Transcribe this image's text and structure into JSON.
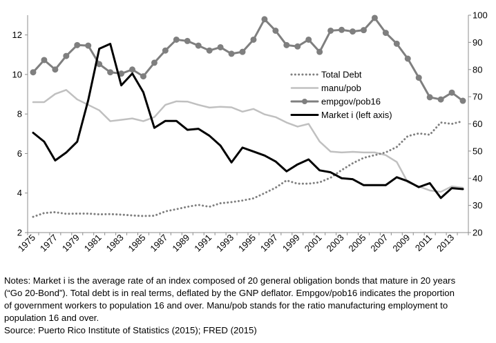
{
  "chart_data": {
    "type": "line",
    "x": [
      1975,
      1976,
      1977,
      1978,
      1979,
      1980,
      1981,
      1982,
      1983,
      1984,
      1985,
      1986,
      1987,
      1988,
      1989,
      1990,
      1991,
      1992,
      1993,
      1994,
      1995,
      1996,
      1997,
      1998,
      1999,
      2000,
      2001,
      2002,
      2003,
      2004,
      2005,
      2006,
      2007,
      2008,
      2009,
      2010,
      2011,
      2012,
      2013,
      2014
    ],
    "x_tick_labels": [
      "1975",
      "1977",
      "1979",
      "1981",
      "1983",
      "1985",
      "1987",
      "1989",
      "1991",
      "1993",
      "1995",
      "1997",
      "1999",
      "2001",
      "2003",
      "2005",
      "2007",
      "2009",
      "2011",
      "2013"
    ],
    "left_axis": {
      "range": [
        2,
        13
      ],
      "ticks": [
        "2",
        "4",
        "6",
        "8",
        "10",
        "12"
      ]
    },
    "right_axis": {
      "range": [
        20,
        100
      ],
      "ticks": [
        "20",
        "30",
        "40",
        "50",
        "60",
        "70",
        "80",
        "90",
        "100"
      ]
    },
    "series": [
      {
        "name": "Total Debt",
        "axis": "right",
        "style": "dotted",
        "color": "#7f7f7f",
        "values": [
          25.8,
          27.2,
          27.5,
          26.9,
          27.0,
          27.0,
          26.7,
          26.8,
          26.6,
          26.3,
          26.1,
          26.2,
          27.8,
          28.6,
          29.5,
          30.2,
          29.5,
          30.8,
          31.2,
          31.8,
          32.6,
          34.5,
          36.5,
          39.2,
          38.0,
          38.0,
          38.5,
          40.2,
          43.0,
          45.5,
          47.5,
          48.5,
          49.5,
          51.5,
          55.5,
          56.5,
          56.0,
          60.5,
          60.0,
          61.0
        ]
      },
      {
        "name": "manu/pob",
        "axis": "right",
        "style": "solid",
        "color": "#c0c0c0",
        "values": [
          68.0,
          68.0,
          71.0,
          72.5,
          69.0,
          67.0,
          65.0,
          61.0,
          61.5,
          62.0,
          61.0,
          62.5,
          67.0,
          68.3,
          68.2,
          67.0,
          66.0,
          66.3,
          66.1,
          64.5,
          65.5,
          63.5,
          62.5,
          60.5,
          59.0,
          60.0,
          53.5,
          49.8,
          49.5,
          49.7,
          49.5,
          49.5,
          48.5,
          46.0,
          38.5,
          37.0,
          35.5,
          35.0,
          37.0,
          36.5
        ]
      },
      {
        "name": "empgov/pob16",
        "axis": "right",
        "style": "solid-markers",
        "color": "#7f7f7f",
        "values": [
          79.0,
          83.5,
          80.0,
          85.0,
          89.0,
          88.8,
          82.0,
          79.0,
          78.5,
          80.0,
          77.5,
          82.5,
          87.0,
          91.0,
          90.5,
          88.8,
          87.0,
          88.2,
          85.8,
          86.5,
          91.0,
          98.5,
          94.3,
          89.0,
          88.5,
          91.0,
          86.5,
          94.3,
          94.6,
          94.0,
          94.5,
          99.0,
          93.5,
          89.5,
          84.0,
          77.0,
          69.8,
          69.0,
          71.5,
          68.5
        ]
      },
      {
        "name": "Market i (left axis)",
        "axis": "left",
        "style": "solid",
        "color": "#000000",
        "values": [
          7.05,
          6.6,
          5.65,
          6.05,
          6.6,
          8.7,
          11.3,
          11.55,
          9.45,
          10.05,
          9.1,
          7.3,
          7.65,
          7.65,
          7.2,
          7.25,
          6.9,
          6.4,
          5.55,
          6.3,
          6.1,
          5.9,
          5.6,
          5.1,
          5.45,
          5.7,
          5.15,
          5.05,
          4.75,
          4.7,
          4.4,
          4.4,
          4.4,
          4.8,
          4.6,
          4.3,
          4.5,
          3.75,
          4.25,
          4.2
        ]
      }
    ],
    "legend_position": "upper-right-inside",
    "grid": false
  },
  "notes": {
    "lines": [
      "Notes: Market i is the average rate of an index composed of 20 general obligation bonds that mature in 20 years",
      "(“Go 20-Bond”). Total debt is in real terms, deflated by the GNP deflator.  Empgov/pob16 indicates the proportion",
      "of government workers to population 16 and over. Manu/pob stands for the ratio manufacturing employment to",
      "population 16 and over."
    ],
    "source": "Source: Puerto Rico Institute of Statistics (2015); FRED (2015)"
  }
}
